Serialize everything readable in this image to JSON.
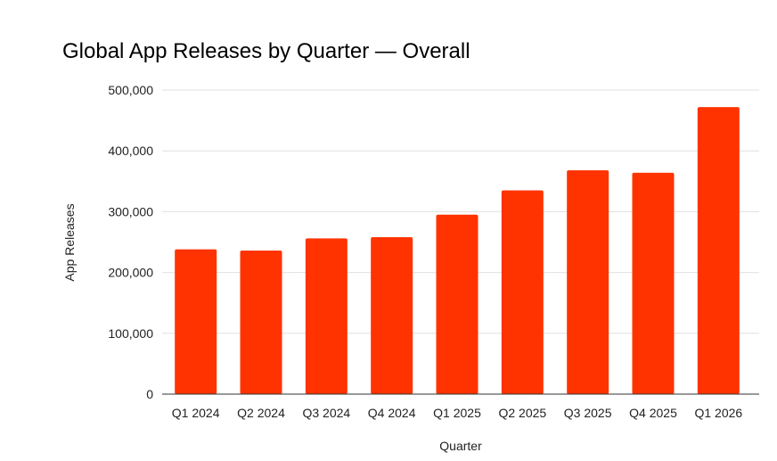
{
  "chart_data": {
    "type": "bar",
    "title": "Global App Releases by Quarter — Overall",
    "xlabel": "Quarter",
    "ylabel": "App Releases",
    "categories": [
      "Q1 2024",
      "Q2 2024",
      "Q3 2024",
      "Q4 2024",
      "Q1 2025",
      "Q2 2025",
      "Q3 2025",
      "Q4 2025",
      "Q1 2026"
    ],
    "values": [
      238000,
      236000,
      256000,
      258000,
      295000,
      335000,
      368000,
      364000,
      472000
    ],
    "ylim": [
      0,
      500000
    ],
    "yticks": [
      0,
      100000,
      200000,
      300000,
      400000,
      500000
    ],
    "ytick_labels": [
      "0",
      "100,000",
      "200,000",
      "300,000",
      "400,000",
      "500,000"
    ],
    "grid": true,
    "legend": "none",
    "bar_color": "#ff3300",
    "grid_color": "#e0e0e0",
    "axis_color": "#333333"
  }
}
